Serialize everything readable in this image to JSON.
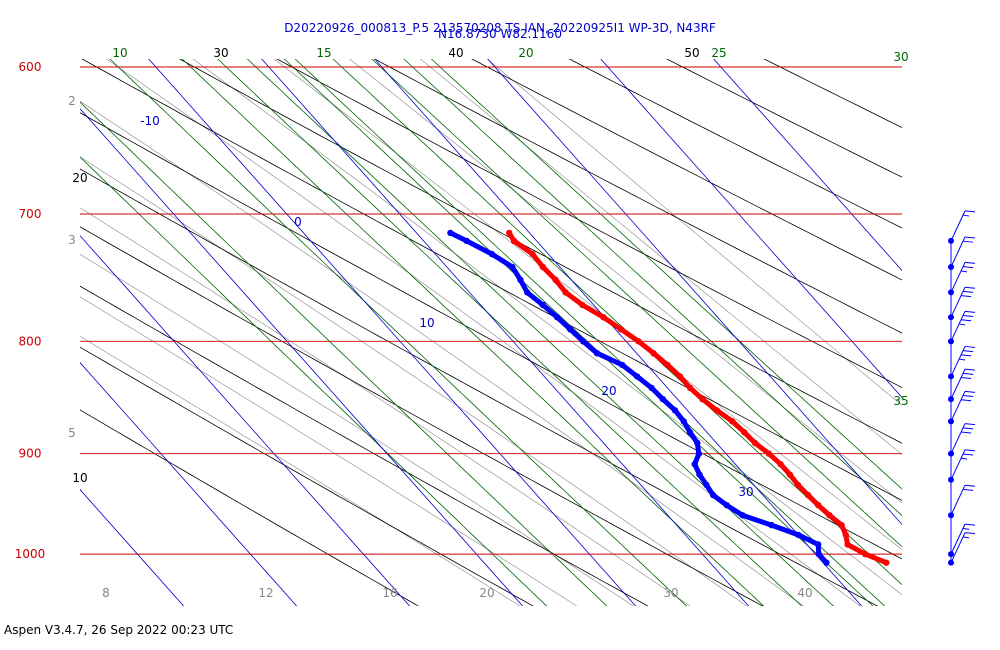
{
  "header": {
    "title": "D20220926_000813_P.5 213570208 TS IAN, 20220925I1 WP-3D, N43RF",
    "subtitle": "N16.8730 W82.1160"
  },
  "footer": {
    "text": "Aspen V3.4.7, 26 Sep 2022  00:23 UTC"
  },
  "colors": {
    "isobar": "#cc0000",
    "isotherm": "#0000cc",
    "mixing_ratio": "#006600",
    "dry_adiabat": "#000000",
    "moist_adiabat": "#888888",
    "temperature": "#ff0000",
    "dewpoint": "#0000ff"
  },
  "chart_data": {
    "type": "skew-t",
    "pressure_levels": [
      "600",
      "700",
      "800",
      "900",
      "1000"
    ],
    "isotherm_labels": [
      "-10",
      "0",
      "10",
      "20",
      "30"
    ],
    "mixing_ratio_labels": [
      "10",
      "15",
      "20",
      "25",
      "30",
      "35"
    ],
    "dry_adiabat_labels": [
      "30",
      "40",
      "50",
      "20",
      "10"
    ],
    "moist_adiabat_top_labels": [
      "2",
      "3",
      "5"
    ],
    "bottom_axis_labels": [
      "8",
      "12",
      "16",
      "20",
      "30",
      "40"
    ],
    "temperature_profile": [
      {
        "p": 1009,
        "t": 25.6
      },
      {
        "p": 1000,
        "t": 24.4
      },
      {
        "p": 990,
        "t": 23.6
      },
      {
        "p": 980,
        "t": 24.2
      },
      {
        "p": 970,
        "t": 24.6
      },
      {
        "p": 960,
        "t": 24.3
      },
      {
        "p": 950,
        "t": 24.1
      },
      {
        "p": 940,
        "t": 24.0
      },
      {
        "p": 930,
        "t": 23.9
      },
      {
        "p": 920,
        "t": 24.0
      },
      {
        "p": 910,
        "t": 24.0
      },
      {
        "p": 900,
        "t": 23.8
      },
      {
        "p": 890,
        "t": 23.4
      },
      {
        "p": 880,
        "t": 23.3
      },
      {
        "p": 870,
        "t": 23.1
      },
      {
        "p": 860,
        "t": 22.6
      },
      {
        "p": 850,
        "t": 22.2
      },
      {
        "p": 840,
        "t": 22.0
      },
      {
        "p": 830,
        "t": 22.0
      },
      {
        "p": 820,
        "t": 21.8
      },
      {
        "p": 810,
        "t": 21.5
      },
      {
        "p": 800,
        "t": 21.1
      },
      {
        "p": 790,
        "t": 20.5
      },
      {
        "p": 780,
        "t": 19.9
      },
      {
        "p": 770,
        "t": 19.0
      },
      {
        "p": 760,
        "t": 18.5
      },
      {
        "p": 750,
        "t": 18.6
      },
      {
        "p": 740,
        "t": 18.5
      },
      {
        "p": 730,
        "t": 18.6
      },
      {
        "p": 720,
        "t": 18.0
      },
      {
        "p": 714,
        "t": 18.2
      }
    ],
    "dewpoint_profile": [
      {
        "p": 1009,
        "t": 20.3
      },
      {
        "p": 1000,
        "t": 20.3
      },
      {
        "p": 990,
        "t": 21.0
      },
      {
        "p": 980,
        "t": 20.0
      },
      {
        "p": 970,
        "t": 18.4
      },
      {
        "p": 960,
        "t": 16.6
      },
      {
        "p": 950,
        "t": 16.0
      },
      {
        "p": 940,
        "t": 15.6
      },
      {
        "p": 930,
        "t": 15.8
      },
      {
        "p": 920,
        "t": 16.0
      },
      {
        "p": 910,
        "t": 16.4
      },
      {
        "p": 900,
        "t": 17.6
      },
      {
        "p": 890,
        "t": 18.3
      },
      {
        "p": 880,
        "t": 18.5
      },
      {
        "p": 870,
        "t": 18.8
      },
      {
        "p": 860,
        "t": 18.9
      },
      {
        "p": 850,
        "t": 18.7
      },
      {
        "p": 840,
        "t": 18.6
      },
      {
        "p": 830,
        "t": 18.2
      },
      {
        "p": 820,
        "t": 17.8
      },
      {
        "p": 810,
        "t": 16.5
      },
      {
        "p": 800,
        "t": 16.2
      },
      {
        "p": 790,
        "t": 16.0
      },
      {
        "p": 780,
        "t": 15.8
      },
      {
        "p": 770,
        "t": 15.5
      },
      {
        "p": 760,
        "t": 15.1
      },
      {
        "p": 750,
        "t": 15.5
      },
      {
        "p": 740,
        "t": 15.8
      },
      {
        "p": 730,
        "t": 15.0
      },
      {
        "p": 720,
        "t": 13.8
      },
      {
        "p": 714,
        "t": 13.0
      }
    ],
    "wind_barb_levels": [
      1009,
      1000,
      960,
      925,
      900,
      870,
      850,
      830,
      800,
      780,
      760,
      740,
      720
    ],
    "wind_barb_speeds_kt": [
      15,
      15,
      20,
      25,
      30,
      30,
      30,
      35,
      35,
      30,
      25,
      20,
      15
    ]
  }
}
